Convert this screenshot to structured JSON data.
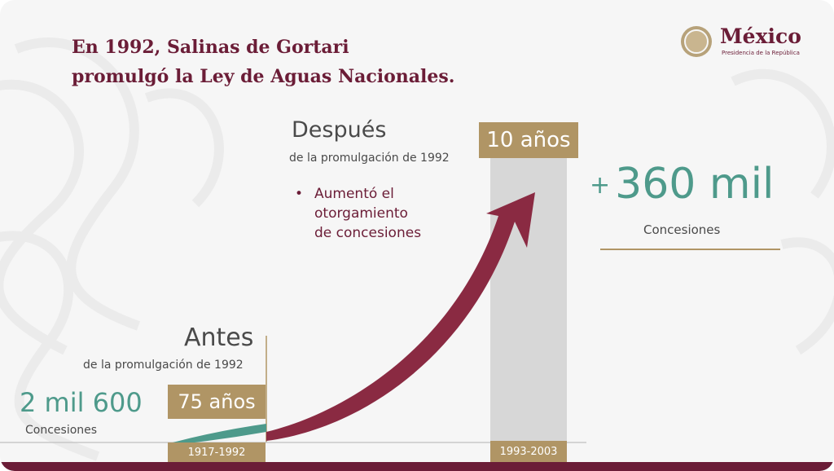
{
  "title": {
    "line1": "En 1992, Salinas de Gortari",
    "line2": "promulgó la Ley de Aguas Nacionales."
  },
  "logo": {
    "name": "México",
    "subtitle": "Presidencia de la República",
    "icon": "mexico-seal-icon"
  },
  "after": {
    "heading": "Después",
    "subheading": "de la promulgación de 1992",
    "duration": "10 años",
    "period": "1993-2003",
    "bullet_lines": [
      "Aumentó el",
      "otorgamiento",
      "de concesiones"
    ],
    "value_prefix": "+",
    "value": "360 mil",
    "value_label": "Concesiones"
  },
  "before": {
    "heading": "Antes",
    "subheading": "de la promulgación de 1992",
    "duration": "75 años",
    "period": "1917-1992",
    "value": "2 mil 600",
    "value_label": "Concesiones"
  },
  "colors": {
    "maroon": "#8a2a42",
    "teal": "#4e9a8b",
    "gold": "#b09565",
    "gray_bar": "#d7d7d7",
    "text": "#4a4a4a"
  }
}
